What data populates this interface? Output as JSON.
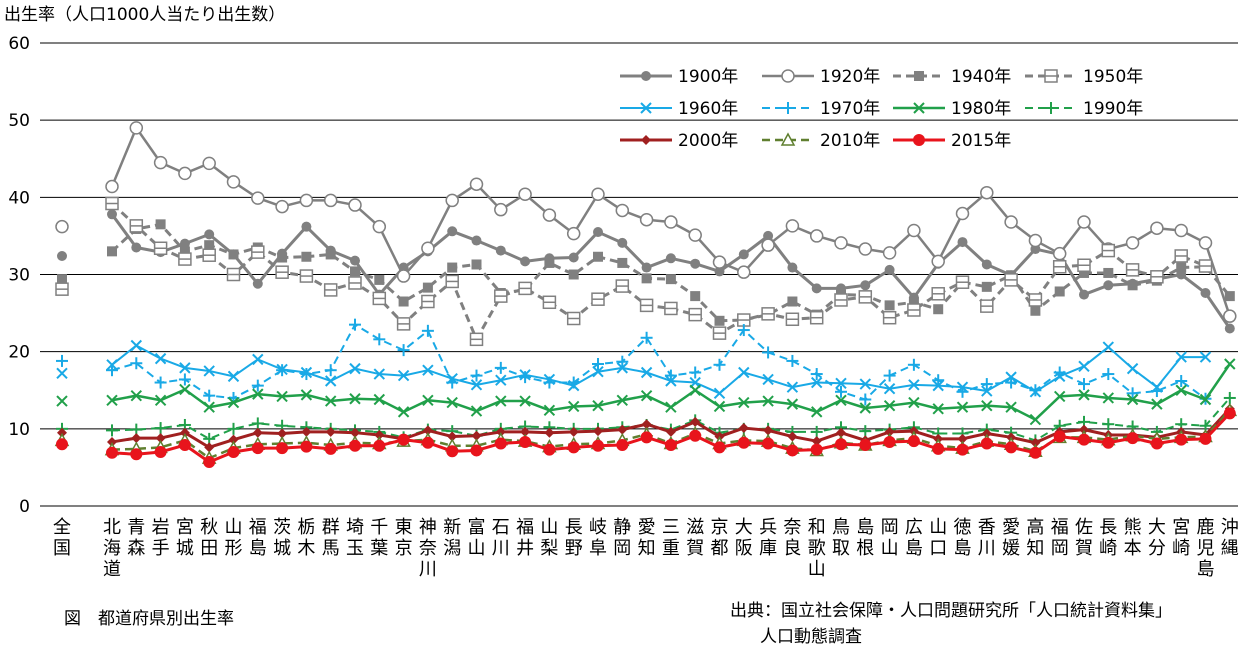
{
  "caption": "図　都道府県別出生率",
  "source_line1": "出典：国立社会保障・人口問題研究所「人口統計資料集」",
  "source_line2": "人口動態調査",
  "chart_data": {
    "type": "line",
    "title": "",
    "ylabel": "出生率（人口1000人当たり出生数）",
    "xlabel": "",
    "ylim": [
      0,
      60
    ],
    "yticks": [
      0,
      10,
      20,
      30,
      40,
      50,
      60
    ],
    "grid": true,
    "legend_position": "top-right",
    "categories": [
      "全国",
      "北海道",
      "青森",
      "岩手",
      "宮城",
      "秋田",
      "山形",
      "福島",
      "茨城",
      "栃木",
      "群馬",
      "埼玉",
      "千葉",
      "東京",
      "神奈川",
      "新潟",
      "富山",
      "石川",
      "福井",
      "山梨",
      "長野",
      "岐阜",
      "静岡",
      "愛知",
      "三重",
      "滋賀",
      "京都",
      "大阪",
      "兵庫",
      "奈良",
      "和歌山",
      "鳥取",
      "島根",
      "岡山",
      "広島",
      "山口",
      "徳島",
      "香川",
      "愛媛",
      "高知",
      "福岡",
      "佐賀",
      "長崎",
      "熊本",
      "大分",
      "宮崎",
      "鹿児島",
      "沖縄"
    ],
    "series": [
      {
        "name": "1900年",
        "color": "#808080",
        "values": [
          32.4,
          37.8,
          33.5,
          32.9,
          34.0,
          35.2,
          32.6,
          28.8,
          32.7,
          36.2,
          33.1,
          31.8,
          27.4,
          30.9,
          33.0,
          35.6,
          34.4,
          33.1,
          31.7,
          32.1,
          32.2,
          35.5,
          34.1,
          30.9,
          32.1,
          31.4,
          30.4,
          32.6,
          35.0,
          30.9,
          28.2,
          28.2,
          28.6,
          30.6,
          27.0,
          31.4,
          34.2,
          31.3,
          29.9,
          33.3,
          32.6,
          27.4,
          28.6,
          28.8,
          29.4,
          30.0,
          27.6,
          23.0
        ]
      },
      {
        "name": "1920年",
        "color": "#808080",
        "values": [
          36.2,
          41.4,
          49.0,
          44.5,
          43.1,
          44.4,
          42.0,
          39.9,
          38.8,
          39.6,
          39.6,
          39.0,
          36.2,
          29.8,
          33.4,
          39.6,
          41.7,
          38.4,
          40.4,
          37.7,
          35.3,
          40.4,
          38.3,
          37.1,
          36.8,
          35.1,
          31.6,
          30.3,
          33.8,
          36.3,
          35.0,
          34.1,
          33.3,
          32.8,
          35.7,
          31.7,
          37.9,
          40.6,
          36.8,
          34.4,
          32.7,
          36.8,
          33.3,
          34.1,
          36.0,
          35.7,
          34.1,
          24.6
        ]
      },
      {
        "name": "1940年",
        "color": "#808080",
        "values": [
          29.4,
          33.0,
          35.9,
          36.5,
          33.0,
          33.8,
          32.6,
          33.5,
          32.2,
          32.3,
          32.6,
          30.4,
          29.3,
          26.5,
          28.3,
          30.9,
          31.3,
          27.6,
          28.0,
          31.5,
          30.0,
          32.3,
          31.5,
          29.5,
          29.4,
          27.2,
          24.0,
          24.1,
          24.8,
          26.5,
          24.8,
          27.4,
          27.3,
          26.0,
          26.4,
          25.5,
          29.0,
          28.4,
          29.9,
          25.3,
          27.8,
          30.2,
          30.2,
          28.6,
          29.2,
          30.9,
          31.0,
          27.2
        ]
      },
      {
        "name": "1950年",
        "color": "#808080",
        "values": [
          28.1,
          39.2,
          36.3,
          33.4,
          32.0,
          32.5,
          30.0,
          32.9,
          30.3,
          29.8,
          28.0,
          28.9,
          26.9,
          23.6,
          26.5,
          29.1,
          21.6,
          27.2,
          28.2,
          26.4,
          24.3,
          26.8,
          28.5,
          26.0,
          25.6,
          24.8,
          22.4,
          24.1,
          24.9,
          24.2,
          24.4,
          26.7,
          27.1,
          24.4,
          25.4,
          27.5,
          29.0,
          25.9,
          29.3,
          26.7,
          31.0,
          31.2,
          33.1,
          30.6,
          29.7,
          32.4,
          31.1,
          null
        ]
      },
      {
        "name": "1960年",
        "color": "#19a9e6",
        "values": [
          17.2,
          18.3,
          20.8,
          19.1,
          17.9,
          17.5,
          16.8,
          19.0,
          17.7,
          17.3,
          16.2,
          17.8,
          17.1,
          16.9,
          17.6,
          16.5,
          15.7,
          16.3,
          17.0,
          16.4,
          15.6,
          17.4,
          17.9,
          17.3,
          16.2,
          16.0,
          14.6,
          17.3,
          16.4,
          15.4,
          16.0,
          15.9,
          15.8,
          15.2,
          15.7,
          15.6,
          15.4,
          14.9,
          16.7,
          14.8,
          16.8,
          18.1,
          20.6,
          17.8,
          15.4,
          19.3,
          19.3,
          null
        ]
      },
      {
        "name": "1970年",
        "color": "#19a9e6",
        "values": [
          18.8,
          17.6,
          18.5,
          16.0,
          16.4,
          14.3,
          14.0,
          15.6,
          17.6,
          17.1,
          17.6,
          23.5,
          21.6,
          20.2,
          22.7,
          16.0,
          16.9,
          17.9,
          16.7,
          16.0,
          16.0,
          18.4,
          18.7,
          21.8,
          16.9,
          17.3,
          18.3,
          22.8,
          19.9,
          18.8,
          17.1,
          14.8,
          13.8,
          16.9,
          18.3,
          16.3,
          14.8,
          15.8,
          16.0,
          15.0,
          17.3,
          15.8,
          17.1,
          14.6,
          14.9,
          16.2,
          13.9,
          null
        ]
      },
      {
        "name": "1980年",
        "color": "#21a04a",
        "values": [
          13.6,
          13.7,
          14.3,
          13.7,
          15.1,
          12.8,
          13.4,
          14.5,
          14.2,
          14.4,
          13.6,
          13.9,
          13.8,
          12.2,
          13.7,
          13.4,
          12.3,
          13.6,
          13.6,
          12.4,
          12.9,
          13.0,
          13.7,
          14.3,
          12.8,
          15.0,
          12.9,
          13.4,
          13.6,
          13.2,
          12.2,
          13.7,
          12.7,
          13.0,
          13.4,
          12.6,
          12.8,
          13.0,
          12.8,
          11.2,
          14.2,
          14.4,
          14.0,
          13.8,
          13.2,
          15.0,
          13.8,
          18.4
        ]
      },
      {
        "name": "1990年",
        "color": "#21a04a",
        "values": [
          10.0,
          9.8,
          9.9,
          10.1,
          10.5,
          8.7,
          10.0,
          10.7,
          10.4,
          10.2,
          10.0,
          9.8,
          9.6,
          8.9,
          9.9,
          9.7,
          9.1,
          10.0,
          10.3,
          10.2,
          10.0,
          10.0,
          10.2,
          10.5,
          9.9,
          11.1,
          9.5,
          10.0,
          10.0,
          9.6,
          9.6,
          10.2,
          9.7,
          9.9,
          10.2,
          9.4,
          9.4,
          9.9,
          9.5,
          8.5,
          10.4,
          10.9,
          10.6,
          10.3,
          9.6,
          10.6,
          10.4,
          14.0
        ]
      },
      {
        "name": "2000年",
        "color": "#a02020",
        "values": [
          9.5,
          8.3,
          8.8,
          8.8,
          9.5,
          7.6,
          8.6,
          9.5,
          9.4,
          9.6,
          9.6,
          9.5,
          9.2,
          8.7,
          9.8,
          9.0,
          9.1,
          9.6,
          9.6,
          9.5,
          9.6,
          9.7,
          9.9,
          10.6,
          9.6,
          10.9,
          9.0,
          10.1,
          9.8,
          9.0,
          8.4,
          9.5,
          8.5,
          9.6,
          9.7,
          8.7,
          8.7,
          9.4,
          8.9,
          8.2,
          9.6,
          9.9,
          9.2,
          9.2,
          8.9,
          9.6,
          9.2,
          12.6
        ]
      },
      {
        "name": "2010年",
        "color": "#5f7f2f",
        "values": [
          8.5,
          7.3,
          7.4,
          7.6,
          8.5,
          6.2,
          7.5,
          8.0,
          8.1,
          8.2,
          7.9,
          8.2,
          8.1,
          8.4,
          8.6,
          7.8,
          7.8,
          8.6,
          8.4,
          7.7,
          8.0,
          8.1,
          8.5,
          9.3,
          8.1,
          9.4,
          8.1,
          8.5,
          8.4,
          7.5,
          7.2,
          8.2,
          7.9,
          8.5,
          8.8,
          7.8,
          7.5,
          8.4,
          8.0,
          7.1,
          8.9,
          8.9,
          8.6,
          9.1,
          8.7,
          8.9,
          9.0,
          12.4
        ]
      },
      {
        "name": "2015年",
        "color": "#e8141c",
        "values": [
          8.0,
          6.9,
          6.7,
          7.0,
          7.9,
          5.7,
          7.0,
          7.5,
          7.5,
          7.7,
          7.4,
          7.8,
          7.8,
          8.6,
          8.2,
          7.1,
          7.2,
          8.1,
          8.3,
          7.3,
          7.6,
          7.8,
          7.9,
          8.9,
          7.9,
          9.1,
          7.6,
          8.2,
          8.1,
          7.2,
          7.3,
          8.0,
          7.9,
          8.3,
          8.4,
          7.4,
          7.3,
          8.1,
          7.6,
          6.9,
          9.0,
          8.6,
          8.2,
          8.8,
          8.1,
          8.6,
          8.7,
          12.0
        ]
      }
    ]
  }
}
